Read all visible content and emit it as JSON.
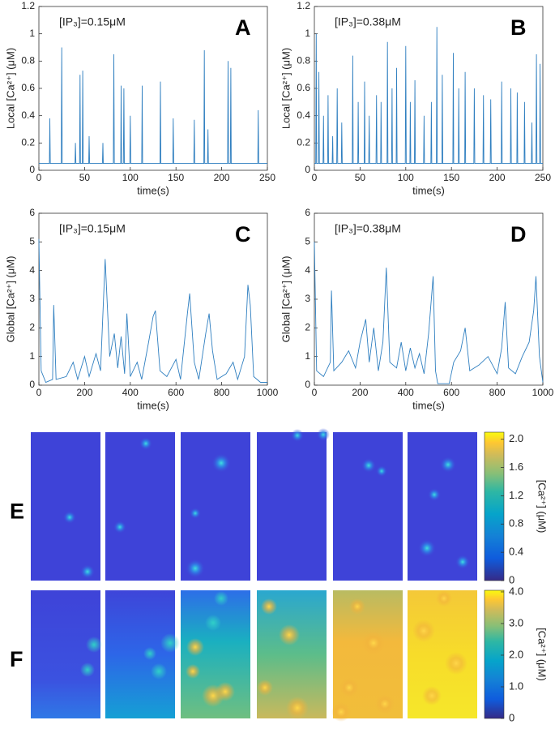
{
  "chart_data": [
    {
      "type": "line",
      "panel": "A",
      "annotation": "[IP₃]=0.15μM",
      "xlabel": "time(s)",
      "ylabel": "Local [Ca²⁺] (μM)",
      "color": "#2f7fc0",
      "xlim": [
        0,
        250
      ],
      "xticks": [
        0,
        50,
        100,
        150,
        200,
        250
      ],
      "ylim": [
        0,
        1.2
      ],
      "yticks": [
        0,
        0.2,
        0.4,
        0.6,
        0.8,
        1,
        1.2
      ],
      "x": [
        0,
        11.5,
        12,
        12.5,
        24.5,
        25,
        25.5,
        39.5,
        40,
        40.5,
        44.5,
        45,
        45.5,
        47.5,
        48,
        48.5,
        54.5,
        55,
        55.5,
        69.5,
        70,
        70.5,
        81.5,
        82,
        82.5,
        89.5,
        90,
        90.5,
        92.5,
        93,
        93.5,
        99.5,
        100,
        100.5,
        112.5,
        113,
        113.5,
        132.5,
        133,
        133.5,
        146.5,
        147,
        147.5,
        169.5,
        170,
        170.5,
        180.5,
        181,
        181.5,
        184.5,
        185,
        185.5,
        206.5,
        207,
        207.5,
        209.5,
        210,
        210.5,
        239.5,
        240,
        240.5,
        250
      ],
      "values": [
        0.05,
        0.05,
        0.38,
        0.05,
        0.05,
        0.9,
        0.05,
        0.05,
        0.2,
        0.05,
        0.05,
        0.7,
        0.05,
        0.05,
        0.73,
        0.05,
        0.05,
        0.25,
        0.05,
        0.05,
        0.2,
        0.05,
        0.05,
        0.85,
        0.05,
        0.05,
        0.62,
        0.05,
        0.05,
        0.6,
        0.05,
        0.05,
        0.4,
        0.05,
        0.05,
        0.62,
        0.05,
        0.05,
        0.65,
        0.05,
        0.05,
        0.38,
        0.05,
        0.05,
        0.37,
        0.05,
        0.05,
        0.88,
        0.05,
        0.05,
        0.3,
        0.05,
        0.05,
        0.8,
        0.05,
        0.05,
        0.75,
        0.05,
        0.05,
        0.44,
        0.05,
        0.05
      ]
    },
    {
      "type": "line",
      "panel": "B",
      "annotation": "[IP₃]=0.38μM",
      "xlabel": "time(s)",
      "ylabel": "Local [Ca²⁺] (μM)",
      "color": "#2f7fc0",
      "xlim": [
        0,
        250
      ],
      "xticks": [
        0,
        50,
        100,
        150,
        200,
        250
      ],
      "ylim": [
        0,
        1.2
      ],
      "yticks": [
        0,
        0.2,
        0.4,
        0.6,
        0.8,
        1,
        1.2
      ],
      "x": [
        0,
        1.5,
        2,
        2.5,
        4.5,
        5,
        5.5,
        9.5,
        10,
        10.5,
        14.5,
        15,
        15.5,
        19.5,
        20,
        20.5,
        24.5,
        25,
        25.5,
        29.5,
        30,
        30.5,
        41.5,
        42,
        42.5,
        47.5,
        48,
        48.5,
        54.5,
        55,
        55.5,
        59.5,
        60,
        60.5,
        67.5,
        68,
        68.5,
        72.5,
        73,
        73.5,
        79.5,
        80,
        80.5,
        84.5,
        85,
        85.5,
        89.5,
        90,
        90.5,
        99.5,
        100,
        100.5,
        104.5,
        105,
        105.5,
        109.5,
        110,
        110.5,
        119.5,
        120,
        120.5,
        127.5,
        128,
        128.5,
        133.5,
        134,
        134.5,
        139.5,
        140,
        140.5,
        151.5,
        152,
        152.5,
        157.5,
        158,
        158.5,
        164.5,
        165,
        165.5,
        174.5,
        175,
        175.5,
        184.5,
        185,
        185.5,
        192.5,
        193,
        193.5,
        204.5,
        205,
        205.5,
        214.5,
        215,
        215.5,
        221.5,
        222,
        222.5,
        229.5,
        230,
        230.5,
        237.5,
        238,
        238.5,
        242.5,
        243,
        243.5,
        246.5,
        247,
        247.5,
        250
      ],
      "values": [
        0.05,
        0.05,
        1,
        0.05,
        0.05,
        0.72,
        0.05,
        0.05,
        0.4,
        0.05,
        0.05,
        0.55,
        0.05,
        0.05,
        0.25,
        0.05,
        0.05,
        0.6,
        0.05,
        0.05,
        0.35,
        0.05,
        0.05,
        0.84,
        0.05,
        0.05,
        0.5,
        0.05,
        0.05,
        0.65,
        0.05,
        0.05,
        0.4,
        0.05,
        0.05,
        0.55,
        0.05,
        0.05,
        0.5,
        0.05,
        0.05,
        0.94,
        0.05,
        0.05,
        0.6,
        0.05,
        0.05,
        0.75,
        0.05,
        0.05,
        0.91,
        0.05,
        0.05,
        0.5,
        0.05,
        0.05,
        0.66,
        0.05,
        0.05,
        0.4,
        0.05,
        0.05,
        0.5,
        0.05,
        0.05,
        1.05,
        0.05,
        0.05,
        0.7,
        0.05,
        0.05,
        0.86,
        0.05,
        0.05,
        0.6,
        0.05,
        0.05,
        0.72,
        0.05,
        0.05,
        0.6,
        0.05,
        0.05,
        0.55,
        0.05,
        0.05,
        0.52,
        0.05,
        0.05,
        0.65,
        0.05,
        0.05,
        0.6,
        0.05,
        0.05,
        0.57,
        0.05,
        0.05,
        0.5,
        0.05,
        0.05,
        0.35,
        0.05,
        0.05,
        0.85,
        0.05,
        0.05,
        0.78,
        0.05,
        0.05
      ]
    },
    {
      "type": "line",
      "panel": "C",
      "annotation": "[IP₃]=0.15μM",
      "xlabel": "time(s)",
      "ylabel": "Global [Ca²⁺] (μM)",
      "color": "#2f7fc0",
      "xlim": [
        0,
        1000
      ],
      "xticks": [
        0,
        200,
        400,
        600,
        800,
        1000
      ],
      "ylim": [
        0,
        6
      ],
      "yticks": [
        0,
        1,
        2,
        3,
        4,
        5,
        6
      ],
      "x": [
        0,
        10,
        30,
        60,
        65,
        75,
        120,
        150,
        170,
        200,
        220,
        250,
        270,
        290,
        310,
        330,
        345,
        360,
        375,
        385,
        400,
        430,
        450,
        480,
        500,
        510,
        530,
        560,
        600,
        620,
        650,
        660,
        680,
        700,
        730,
        745,
        760,
        780,
        820,
        850,
        870,
        900,
        915,
        925,
        940,
        970,
        1000
      ],
      "values": [
        5.1,
        0.5,
        0.1,
        0.2,
        2.8,
        0.2,
        0.3,
        0.8,
        0.2,
        1,
        0.3,
        1.1,
        0.5,
        4.4,
        1,
        1.8,
        0.6,
        1.7,
        0.4,
        2.5,
        0.3,
        0.8,
        0.2,
        1.5,
        2.4,
        2.6,
        0.5,
        0.3,
        0.9,
        0.2,
        2.5,
        3.2,
        0.8,
        0.2,
        1.8,
        2.5,
        1.2,
        0.2,
        0.4,
        0.8,
        0.2,
        1,
        3.5,
        2.8,
        0.3,
        0.1,
        0.1
      ]
    },
    {
      "type": "line",
      "panel": "D",
      "annotation": "[IP₃]=0.38μM",
      "xlabel": "time(s)",
      "ylabel": "Global [Ca²⁺] (μM)",
      "color": "#2f7fc0",
      "xlim": [
        0,
        1000
      ],
      "xticks": [
        0,
        200,
        400,
        600,
        800,
        1000
      ],
      "ylim": [
        0,
        6
      ],
      "yticks": [
        0,
        1,
        2,
        3,
        4,
        5,
        6
      ],
      "x": [
        0,
        10,
        40,
        70,
        75,
        85,
        120,
        150,
        180,
        200,
        225,
        240,
        260,
        280,
        300,
        315,
        330,
        360,
        380,
        400,
        420,
        440,
        460,
        480,
        500,
        520,
        530,
        540,
        590,
        610,
        640,
        660,
        680,
        720,
        760,
        800,
        820,
        835,
        850,
        880,
        910,
        940,
        960,
        970,
        985,
        1000
      ],
      "values": [
        5,
        0.5,
        0.3,
        0.8,
        3.3,
        0.5,
        0.8,
        1.2,
        0.6,
        1.5,
        2.3,
        0.8,
        2,
        0.5,
        1.5,
        4.1,
        0.8,
        0.6,
        1.5,
        0.5,
        1.3,
        0.6,
        1.1,
        0.4,
        1.8,
        3.8,
        0.5,
        0.05,
        0.05,
        0.8,
        1.2,
        2,
        0.5,
        0.7,
        1,
        0.4,
        1.3,
        2.9,
        0.6,
        0.4,
        1,
        1.5,
        2.6,
        3.8,
        1,
        0.1
      ]
    },
    {
      "type": "heatmap",
      "panel": "E",
      "colorbar_label": "[Ca²⁺] (μM)",
      "clim": [
        0,
        2.1
      ],
      "cticks": [
        0,
        0.4,
        0.8,
        1.2,
        1.6,
        {
          "value": 2,
          "label": "2.0"
        }
      ]
    },
    {
      "type": "heatmap",
      "panel": "F",
      "colorbar_label": "[Ca²⁺] (μM)",
      "clim": [
        0,
        4.05
      ],
      "cticks": [
        0,
        {
          "value": 1,
          "label": "1.0"
        },
        {
          "value": 2,
          "label": "2.0"
        },
        {
          "value": 3,
          "label": "3.0"
        },
        {
          "value": 4,
          "label": "4.0"
        }
      ]
    }
  ]
}
